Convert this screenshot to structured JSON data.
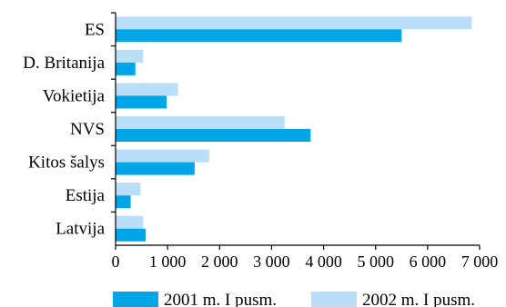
{
  "chart_data": {
    "type": "bar",
    "orientation": "horizontal",
    "categories": [
      "ES",
      "D. Britanija",
      "Vokietija",
      "NVS",
      "Kitos šalys",
      "Estija",
      "Latvija"
    ],
    "series": [
      {
        "name": "2001 m. I pusm.",
        "color": "#00a6e8",
        "values": [
          5500,
          380,
          980,
          3750,
          1520,
          290,
          580
        ]
      },
      {
        "name": "2002 m. I pusm.",
        "color": "#b8def8",
        "values": [
          6850,
          530,
          1200,
          3250,
          1800,
          480,
          530
        ]
      }
    ],
    "xlim": [
      0,
      7000
    ],
    "xticks": [
      0,
      1000,
      2000,
      3000,
      4000,
      5000,
      6000,
      7000
    ],
    "xtick_labels": [
      "0",
      "1 000",
      "2 000",
      "3 000",
      "4 000",
      "5 000",
      "6 000",
      "7 000"
    ],
    "xlabel": "",
    "ylabel": "",
    "title": "",
    "grid": false,
    "legend_position": "bottom"
  }
}
